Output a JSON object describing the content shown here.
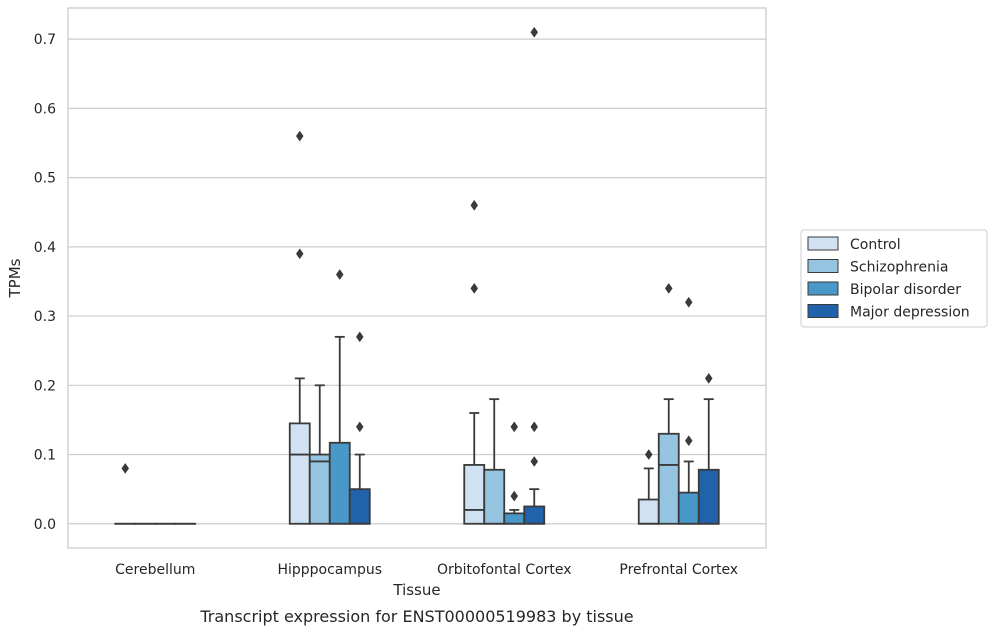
{
  "chart_data": {
    "type": "box",
    "xlabel": "Tissue",
    "ylabel": "TPMs",
    "caption": "Transcript expression for ENST00000519983 by tissue",
    "ylim": [
      -0.035,
      0.745
    ],
    "yticks": [
      0.0,
      0.1,
      0.2,
      0.3,
      0.4,
      0.5,
      0.6,
      0.7
    ],
    "ytick_labels": [
      "0.0",
      "0.1",
      "0.2",
      "0.3",
      "0.4",
      "0.5",
      "0.6",
      "0.7"
    ],
    "grid": "horizontal",
    "legend_position": "right",
    "categories": [
      "Cerebellum",
      "Hipppocampus",
      "Orbitofontal Cortex",
      "Prefrontal Cortex"
    ],
    "series": [
      {
        "name": "Control",
        "color": "#d0e1f2",
        "boxes": [
          {
            "q1": 0.0,
            "median": 0.0,
            "q3": 0.0,
            "whisker_low": 0.0,
            "whisker_high": 0.0,
            "outliers": [
              0.08
            ]
          },
          {
            "q1": 0.0,
            "median": 0.1,
            "q3": 0.145,
            "whisker_low": 0.0,
            "whisker_high": 0.21,
            "outliers": [
              0.39,
              0.56
            ]
          },
          {
            "q1": 0.0,
            "median": 0.02,
            "q3": 0.085,
            "whisker_low": 0.0,
            "whisker_high": 0.16,
            "outliers": [
              0.34,
              0.46
            ]
          },
          {
            "q1": 0.0,
            "median": 0.0,
            "q3": 0.035,
            "whisker_low": 0.0,
            "whisker_high": 0.08,
            "outliers": [
              0.1
            ]
          }
        ]
      },
      {
        "name": "Schizophrenia",
        "color": "#94c4df",
        "boxes": [
          {
            "q1": 0.0,
            "median": 0.0,
            "q3": 0.0,
            "whisker_low": 0.0,
            "whisker_high": 0.0,
            "outliers": []
          },
          {
            "q1": 0.0,
            "median": 0.09,
            "q3": 0.1,
            "whisker_low": 0.0,
            "whisker_high": 0.2,
            "outliers": []
          },
          {
            "q1": 0.0,
            "median": 0.0,
            "q3": 0.078,
            "whisker_low": 0.0,
            "whisker_high": 0.18,
            "outliers": []
          },
          {
            "q1": 0.0,
            "median": 0.085,
            "q3": 0.13,
            "whisker_low": 0.0,
            "whisker_high": 0.18,
            "outliers": [
              0.34
            ]
          }
        ]
      },
      {
        "name": "Bipolar disorder",
        "color": "#4a98c9",
        "boxes": [
          {
            "q1": 0.0,
            "median": 0.0,
            "q3": 0.0,
            "whisker_low": 0.0,
            "whisker_high": 0.0,
            "outliers": []
          },
          {
            "q1": 0.0,
            "median": 0.0,
            "q3": 0.117,
            "whisker_low": 0.0,
            "whisker_high": 0.27,
            "outliers": [
              0.36
            ]
          },
          {
            "q1": 0.0,
            "median": 0.0,
            "q3": 0.015,
            "whisker_low": 0.0,
            "whisker_high": 0.02,
            "outliers": [
              0.04,
              0.14
            ]
          },
          {
            "q1": 0.0,
            "median": 0.0,
            "q3": 0.045,
            "whisker_low": 0.0,
            "whisker_high": 0.09,
            "outliers": [
              0.12,
              0.32
            ]
          }
        ]
      },
      {
        "name": "Major depression",
        "color": "#2163aa",
        "boxes": [
          {
            "q1": 0.0,
            "median": 0.0,
            "q3": 0.0,
            "whisker_low": 0.0,
            "whisker_high": 0.0,
            "outliers": []
          },
          {
            "q1": 0.0,
            "median": 0.0,
            "q3": 0.05,
            "whisker_low": 0.0,
            "whisker_high": 0.1,
            "outliers": [
              0.14,
              0.27
            ]
          },
          {
            "q1": 0.0,
            "median": 0.0,
            "q3": 0.025,
            "whisker_low": 0.0,
            "whisker_high": 0.05,
            "outliers": [
              0.09,
              0.14,
              0.71
            ]
          },
          {
            "q1": 0.0,
            "median": 0.0,
            "q3": 0.078,
            "whisker_low": 0.0,
            "whisker_high": 0.18,
            "outliers": [
              0.21
            ]
          }
        ]
      }
    ]
  }
}
